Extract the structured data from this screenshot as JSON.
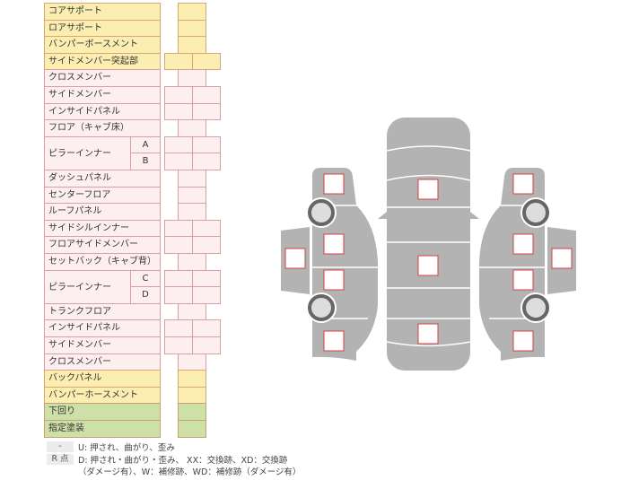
{
  "rows": [
    {
      "label": "コアサポート",
      "color": "y",
      "cols": 1
    },
    {
      "label": "ロアサポート",
      "color": "y",
      "cols": 1
    },
    {
      "label": "バンパーボースメント",
      "color": "y",
      "cols": 1
    },
    {
      "label": "サイドメンバー突起部",
      "color": "y",
      "cols": 2
    },
    {
      "label": "クロスメンバー",
      "color": "p",
      "cols": 1
    },
    {
      "label": "サイドメンバー",
      "color": "p",
      "cols": 2
    },
    {
      "label": "インサイドパネル",
      "color": "p",
      "cols": 2
    },
    {
      "label": "フロア（キャブ床）",
      "color": "p",
      "cols": 1
    },
    {
      "label": "ピラーインナー",
      "color": "p",
      "cols": 2,
      "sub": "A"
    },
    {
      "label": "",
      "color": "p",
      "cols": 2,
      "sub": "B"
    },
    {
      "label": "ダッシュパネル",
      "color": "p",
      "cols": 1
    },
    {
      "label": "センターフロア",
      "color": "p",
      "cols": 1
    },
    {
      "label": "ルーフパネル",
      "color": "p",
      "cols": 1
    },
    {
      "label": "サイドシルインナー",
      "color": "p",
      "cols": 2
    },
    {
      "label": "フロアサイドメンバー",
      "color": "p",
      "cols": 2
    },
    {
      "label": "セットバック（キャブ背）",
      "color": "p",
      "cols": 1
    },
    {
      "label": "ピラーインナー",
      "color": "p",
      "cols": 2,
      "sub": "C"
    },
    {
      "label": "",
      "color": "p",
      "cols": 2,
      "sub": "D"
    },
    {
      "label": "トランクフロア",
      "color": "p",
      "cols": 1
    },
    {
      "label": "インサイドパネル",
      "color": "p",
      "cols": 2
    },
    {
      "label": "サイドメンバー",
      "color": "p",
      "cols": 2
    },
    {
      "label": "クロスメンバー",
      "color": "p",
      "cols": 1
    },
    {
      "label": "バックパネル",
      "color": "y",
      "cols": 1
    },
    {
      "label": "バンパーホースメント",
      "color": "y",
      "cols": 1
    },
    {
      "label": "下回り",
      "color": "g",
      "cols": 1
    },
    {
      "label": "指定塗装",
      "color": "g",
      "cols": 1
    }
  ],
  "legend": {
    "badge1": "-",
    "line1": "U: 押され、曲がり、歪み",
    "badge2": "R 点",
    "line2": "D: 押され・曲がり・歪み、 XX：交換跡、XD：交換跡",
    "line3": "（ダメージ有）、W：補修跡、WD：補修跡（ダメージ有）"
  },
  "colors": {
    "body": "#b3b3b3",
    "wheel": "#666666",
    "marker": "#d04040"
  }
}
